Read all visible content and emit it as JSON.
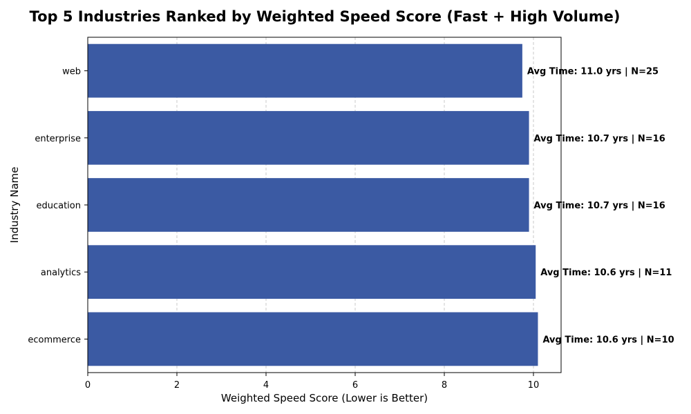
{
  "chart_data": {
    "type": "bar",
    "orientation": "horizontal",
    "title": "Top 5 Industries Ranked by Weighted Speed Score (Fast + High Volume)",
    "xlabel": "Weighted Speed Score (Lower is Better)",
    "ylabel": "Industry Name",
    "xlim": [
      0,
      10.62
    ],
    "xticks": [
      0,
      2,
      4,
      6,
      8,
      10
    ],
    "grid": "x-dashed",
    "bar_color": "#3b5aa3",
    "categories": [
      "web",
      "enterprise",
      "education",
      "analytics",
      "ecommerce"
    ],
    "values": [
      9.75,
      9.9,
      9.9,
      10.05,
      10.1
    ],
    "annotations": [
      "Avg Time: 11.0 yrs | N=25",
      "Avg Time: 10.7 yrs | N=16",
      "Avg Time: 10.7 yrs | N=16",
      "Avg Time: 10.6 yrs | N=11",
      "Avg Time: 10.6 yrs | N=10"
    ]
  }
}
